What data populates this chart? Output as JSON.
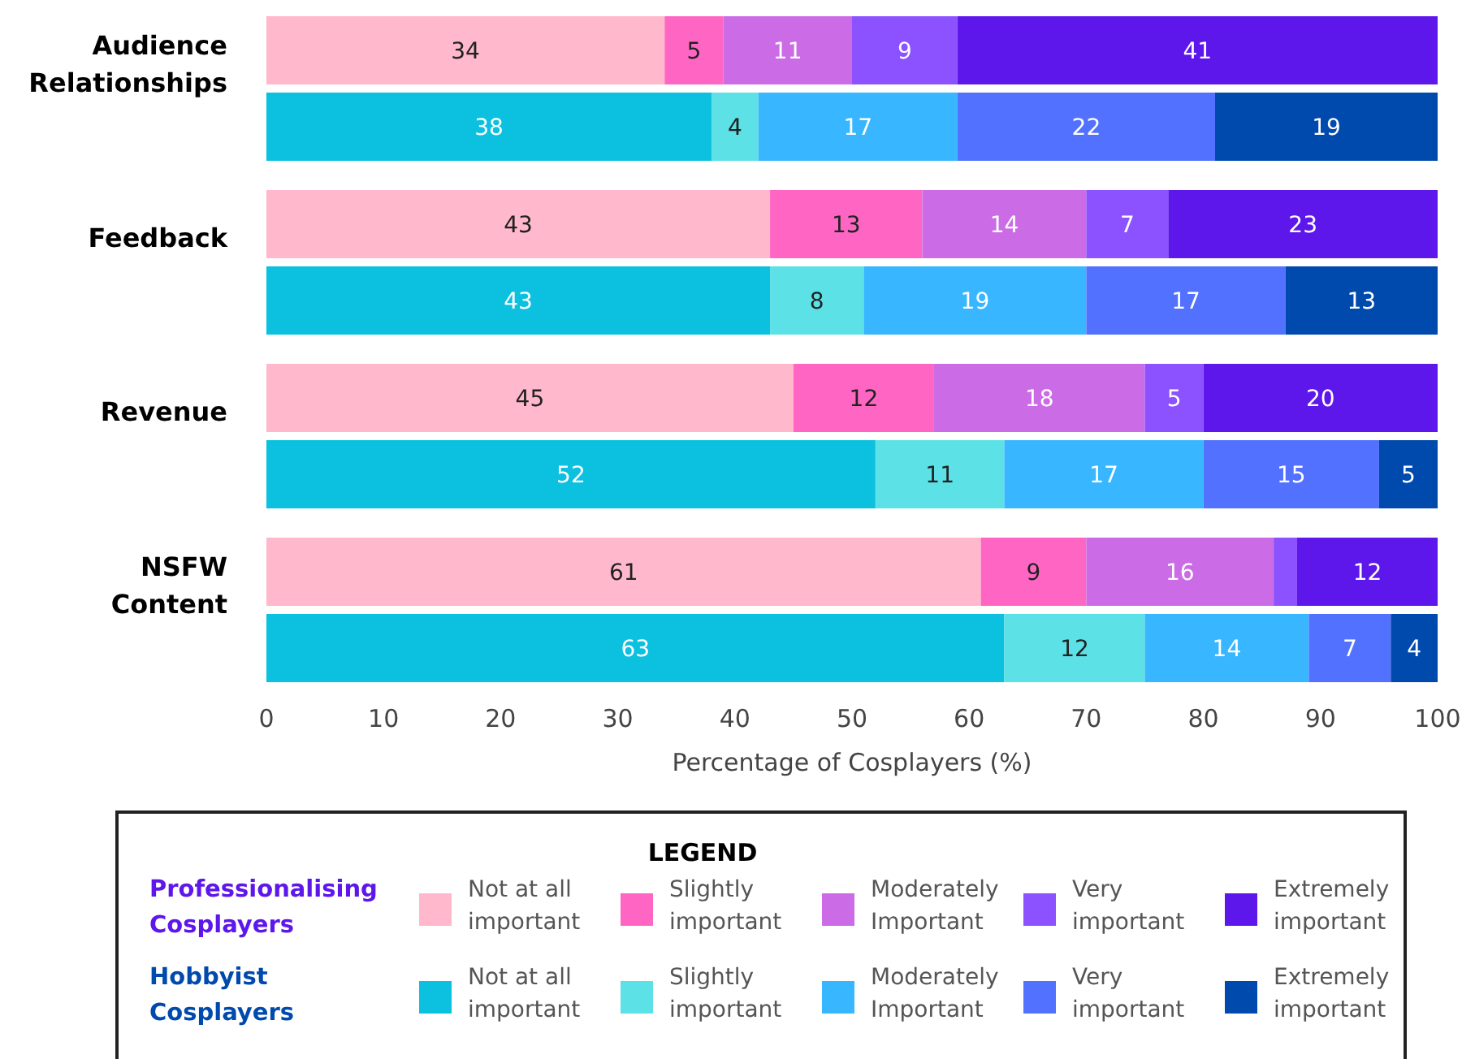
{
  "chart_data": {
    "type": "bar",
    "orientation": "horizontal",
    "stacked": true,
    "categories": [
      "Audience Relationships",
      null,
      "Feedback",
      null,
      "Revenue",
      null,
      "NSFW Content",
      null
    ],
    "xlabel": "Percentage of Cosplayers (%)",
    "xlim": [
      0,
      100
    ],
    "xticks": [
      0,
      10,
      20,
      30,
      40,
      50,
      60,
      70,
      80,
      90,
      100
    ],
    "grid": false,
    "legend": "bottom",
    "legend_title": "LEGEND",
    "annotations": [
      "Professionalising Cosplayers",
      "Hobbyist Cosplayers"
    ],
    "series": [
      {
        "name": "Not at all important",
        "color": "#ffb8cc",
        "values": [
          34,
          null,
          43,
          null,
          45,
          null,
          61,
          null
        ],
        "value_labels": [
          "34",
          null,
          "43",
          null,
          "45",
          null,
          "61",
          null
        ]
      },
      {
        "name": "Slightly important",
        "color": "#ff66c4",
        "values": [
          5,
          null,
          13,
          null,
          12,
          null,
          9,
          null
        ],
        "value_labels": [
          "5",
          null,
          "13",
          null,
          "12",
          null,
          "9",
          null
        ]
      },
      {
        "name": "Moderately Important",
        "color": "#cb6ce6",
        "values": [
          11,
          null,
          14,
          null,
          18,
          null,
          16,
          null
        ],
        "value_labels": [
          "11",
          null,
          "14",
          null,
          "18",
          null,
          "16",
          null
        ]
      },
      {
        "name": "Very important",
        "color": "#8c52ff",
        "values": [
          9,
          null,
          7,
          null,
          5,
          null,
          2,
          null
        ],
        "value_labels": [
          "9",
          null,
          "7",
          null,
          "5",
          null,
          null,
          null
        ]
      },
      {
        "name": "Extremely important",
        "color": "#5e17eb",
        "values": [
          41,
          null,
          23,
          null,
          20,
          null,
          12,
          null
        ],
        "value_labels": [
          "41",
          null,
          "23",
          null,
          "20",
          null,
          "12",
          null
        ]
      },
      {
        "name": "Not at all important",
        "color": "#0cc0df",
        "values": [
          null,
          38,
          null,
          43,
          null,
          52,
          null,
          63
        ],
        "value_labels": [
          null,
          "38",
          null,
          "43",
          null,
          "52",
          null,
          "63"
        ]
      },
      {
        "name": "Slightly important",
        "color": "#5ce1e6",
        "values": [
          null,
          4,
          null,
          8,
          null,
          11,
          null,
          12
        ],
        "value_labels": [
          null,
          "4",
          null,
          "8",
          null,
          "11",
          null,
          "12"
        ]
      },
      {
        "name": "Moderately Important",
        "color": "#38b6ff",
        "values": [
          null,
          17,
          null,
          19,
          null,
          17,
          null,
          14
        ],
        "value_labels": [
          null,
          "17",
          null,
          "19",
          null,
          "17",
          null,
          "14"
        ]
      },
      {
        "name": "Very important",
        "color": "#5271ff",
        "values": [
          null,
          22,
          null,
          17,
          null,
          15,
          null,
          7
        ],
        "value_labels": [
          null,
          "22",
          null,
          "17",
          null,
          "15",
          null,
          "7"
        ]
      },
      {
        "name": "Extremely important",
        "color": "#004aad",
        "values": [
          null,
          19,
          null,
          13,
          null,
          5,
          null,
          4
        ],
        "value_labels": [
          null,
          "19",
          null,
          "13",
          null,
          "5",
          null,
          "4"
        ]
      }
    ]
  }
}
